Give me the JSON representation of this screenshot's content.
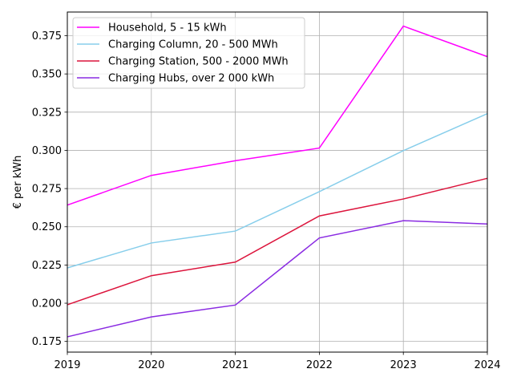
{
  "chart_data": {
    "type": "line",
    "title": "",
    "xlabel": "",
    "ylabel": "€ per kWh",
    "x": [
      2019,
      2020,
      2021,
      2022,
      2023,
      2024
    ],
    "xlim": [
      2019,
      2024
    ],
    "ylim": [
      0.168,
      0.3905
    ],
    "yticks": [
      0.175,
      0.2,
      0.225,
      0.25,
      0.275,
      0.3,
      0.325,
      0.35,
      0.375
    ],
    "ytick_labels": [
      "0.175",
      "0.200",
      "0.225",
      "0.250",
      "0.275",
      "0.300",
      "0.325",
      "0.350",
      "0.375"
    ],
    "xtick_labels": [
      "2019",
      "2020",
      "2021",
      "2022",
      "2023",
      "2024"
    ],
    "grid": true,
    "legend_position": "top-left",
    "series": [
      {
        "name": "Household, 5 - 15 kWh",
        "color": "#ff00ff",
        "values": [
          0.2642,
          0.2836,
          0.2932,
          0.3015,
          0.3813,
          0.3613
        ]
      },
      {
        "name": "Charging Column, 20 - 500 MWh",
        "color": "#87ceeb",
        "values": [
          0.2231,
          0.2394,
          0.2472,
          0.273,
          0.2998,
          0.324
        ]
      },
      {
        "name": "Charging Station, 500 - 2000 MWh",
        "color": "#dc143c",
        "values": [
          0.199,
          0.218,
          0.2269,
          0.2571,
          0.2682,
          0.2817
        ]
      },
      {
        "name": "Charging Hubs, over 2 000 kWh",
        "color": "#8a2be2",
        "values": [
          0.178,
          0.191,
          0.1988,
          0.2427,
          0.254,
          0.2518
        ]
      }
    ]
  }
}
